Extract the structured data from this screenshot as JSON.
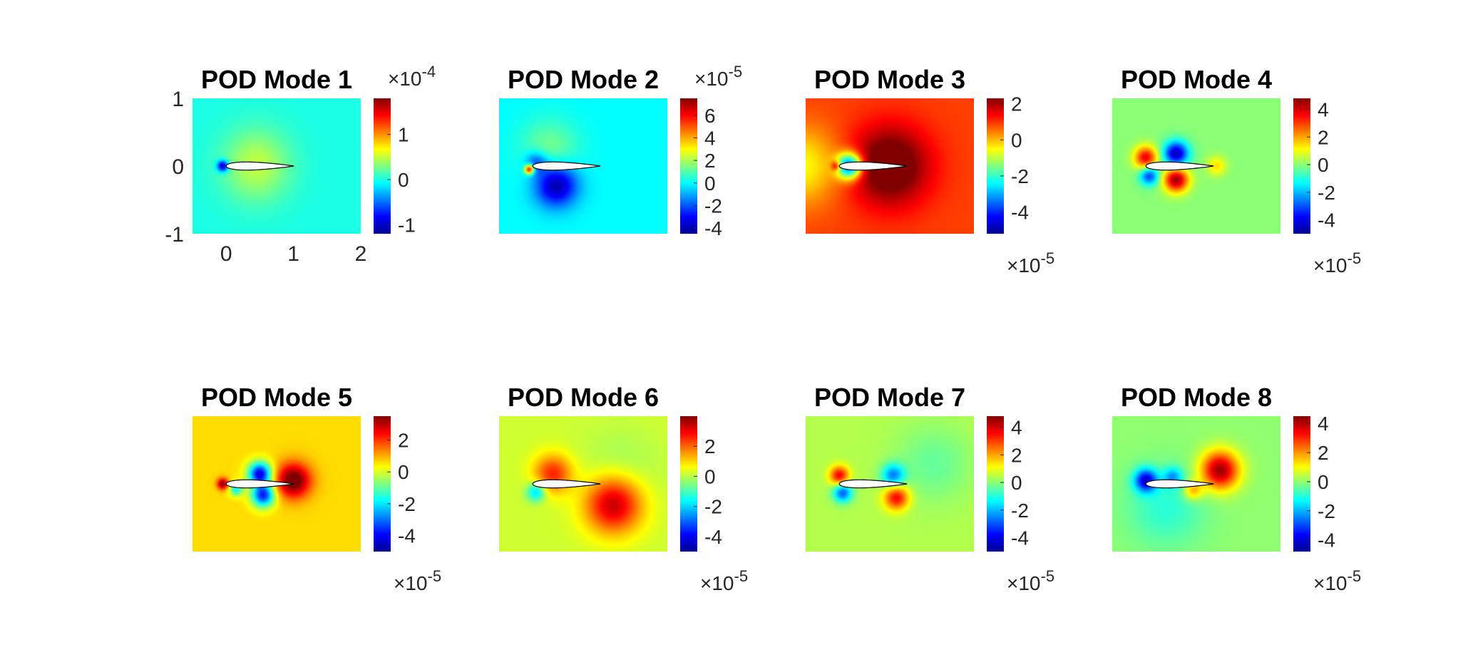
{
  "figure": {
    "colormap": [
      "#00008f",
      "#0000ff",
      "#0080ff",
      "#00ffff",
      "#80ff80",
      "#ffff00",
      "#ff8000",
      "#ff0000",
      "#800000"
    ],
    "airfoil_fill": "#ffffff",
    "airfoil_stroke": "#000000",
    "shared_axes": {
      "x_ticks": [
        "0",
        "1",
        "2"
      ],
      "y_ticks": [
        "1",
        "0",
        "-1"
      ]
    }
  },
  "chart_data": [
    {
      "type": "heatmap",
      "title": "POD Mode 1",
      "shows_axis_ticks": true,
      "xlim": [
        -0.5,
        2
      ],
      "ylim": [
        -1,
        1
      ],
      "colorbar": {
        "clim": [
          -1.2,
          1.8
        ],
        "ticks": [
          1,
          0,
          -1
        ],
        "tick_labels": [
          "1",
          "0",
          "-1"
        ],
        "exponent_label": "×10",
        "exponent": "-4",
        "exponent_position": "top"
      },
      "field_level": 0.0,
      "features": [
        {
          "x": -0.05,
          "y": 0.0,
          "value": -1.2,
          "spread": 0.06
        },
        {
          "x": 0.45,
          "y": 0.12,
          "value": 0.3,
          "spread": 0.35
        },
        {
          "x": 0.45,
          "y": -0.12,
          "value": 0.25,
          "spread": 0.35
        }
      ]
    },
    {
      "type": "heatmap",
      "title": "POD Mode 2",
      "shows_axis_ticks": false,
      "xlim": [
        -0.5,
        2
      ],
      "ylim": [
        -1,
        1
      ],
      "colorbar": {
        "clim": [
          -4.5,
          7.5
        ],
        "ticks": [
          6,
          4,
          2,
          0,
          -2,
          -4
        ],
        "tick_labels": [
          "6",
          "4",
          "2",
          "0",
          "-2",
          "-4"
        ],
        "exponent_label": "×10",
        "exponent": "-5",
        "exponent_position": "top"
      },
      "field_level": 0.0,
      "features": [
        {
          "x": 0.35,
          "y": -0.28,
          "value": -4.5,
          "spread": 0.22
        },
        {
          "x": 0.05,
          "y": 0.05,
          "value": -2.5,
          "spread": 0.12
        },
        {
          "x": -0.05,
          "y": -0.05,
          "value": 7.0,
          "spread": 0.05
        },
        {
          "x": 0.25,
          "y": 0.25,
          "value": 1.5,
          "spread": 0.3
        }
      ]
    },
    {
      "type": "heatmap",
      "title": "POD Mode 3",
      "shows_axis_ticks": false,
      "xlim": [
        -0.5,
        2
      ],
      "ylim": [
        -1,
        1
      ],
      "colorbar": {
        "clim": [
          -5.2,
          2.3
        ],
        "ticks": [
          2,
          0,
          -2,
          -4
        ],
        "tick_labels": [
          "2",
          "0",
          "-2",
          "-4"
        ],
        "exponent_label": "×10",
        "exponent": "-5",
        "exponent_position": "bottom"
      },
      "field_level": 0.9,
      "features": [
        {
          "x": 0.15,
          "y": 0.0,
          "value": -5.0,
          "spread": 0.13
        },
        {
          "x": 0.75,
          "y": 0.0,
          "value": 2.2,
          "spread": 0.4
        },
        {
          "x": -0.55,
          "y": 0.0,
          "value": -1.5,
          "spread": 0.4
        },
        {
          "x": -0.05,
          "y": 0.0,
          "value": 2.0,
          "spread": 0.05
        }
      ]
    },
    {
      "type": "heatmap",
      "title": "POD Mode 4",
      "shows_axis_ticks": false,
      "xlim": [
        -0.5,
        2
      ],
      "ylim": [
        -1,
        1
      ],
      "colorbar": {
        "clim": [
          -5.0,
          4.8
        ],
        "ticks": [
          4,
          2,
          0,
          -2,
          -4
        ],
        "tick_labels": [
          "4",
          "2",
          "0",
          "-2",
          "-4"
        ],
        "exponent_label": "×10",
        "exponent": "-5",
        "exponent_position": "bottom"
      },
      "field_level": 0.0,
      "features": [
        {
          "x": 0.0,
          "y": 0.12,
          "value": 4.0,
          "spread": 0.12
        },
        {
          "x": 0.05,
          "y": -0.14,
          "value": -3.5,
          "spread": 0.1
        },
        {
          "x": 0.45,
          "y": 0.18,
          "value": -4.8,
          "spread": 0.13
        },
        {
          "x": 0.45,
          "y": -0.2,
          "value": 4.8,
          "spread": 0.13
        },
        {
          "x": 1.05,
          "y": 0.0,
          "value": 1.5,
          "spread": 0.1
        }
      ]
    },
    {
      "type": "heatmap",
      "title": "POD Mode 5",
      "shows_axis_ticks": false,
      "xlim": [
        -0.5,
        2
      ],
      "ylim": [
        -1,
        1
      ],
      "colorbar": {
        "clim": [
          -5.0,
          3.5
        ],
        "ticks": [
          2,
          0,
          -2,
          -4
        ],
        "tick_labels": [
          "2",
          "0",
          "-2",
          "-4"
        ],
        "exponent_label": "×10",
        "exponent": "-5",
        "exponent_position": "bottom"
      },
      "field_level": 0.6,
      "features": [
        {
          "x": 0.5,
          "y": 0.15,
          "value": -5.0,
          "spread": 0.12
        },
        {
          "x": 0.55,
          "y": -0.17,
          "value": -4.5,
          "spread": 0.12
        },
        {
          "x": 1.0,
          "y": 0.05,
          "value": 3.5,
          "spread": 0.18
        },
        {
          "x": -0.05,
          "y": 0.0,
          "value": 3.0,
          "spread": 0.06
        },
        {
          "x": 0.15,
          "y": -0.08,
          "value": -2.5,
          "spread": 0.07
        }
      ]
    },
    {
      "type": "heatmap",
      "title": "POD Mode 6",
      "shows_axis_ticks": false,
      "xlim": [
        -0.5,
        2
      ],
      "ylim": [
        -1,
        1
      ],
      "colorbar": {
        "clim": [
          -5.0,
          4.0
        ],
        "ticks": [
          2,
          0,
          -2,
          -4
        ],
        "tick_labels": [
          "2",
          "0",
          "-2",
          "-4"
        ],
        "exponent_label": "×10",
        "exponent": "-5",
        "exponent_position": "bottom"
      },
      "field_level": 0.2,
      "features": [
        {
          "x": 0.3,
          "y": 0.15,
          "value": 2.5,
          "spread": 0.2
        },
        {
          "x": 1.2,
          "y": -0.3,
          "value": 3.5,
          "spread": 0.3
        },
        {
          "x": 0.05,
          "y": -0.12,
          "value": -2.5,
          "spread": 0.1
        },
        {
          "x": 1.3,
          "y": 0.2,
          "value": -0.5,
          "spread": 0.4
        }
      ]
    },
    {
      "type": "heatmap",
      "title": "POD Mode 7",
      "shows_axis_ticks": false,
      "xlim": [
        -0.5,
        2
      ],
      "ylim": [
        -1,
        1
      ],
      "colorbar": {
        "clim": [
          -5.0,
          4.8
        ],
        "ticks": [
          4,
          2,
          0,
          -2,
          -4
        ],
        "tick_labels": [
          "4",
          "2",
          "0",
          "-2",
          "-4"
        ],
        "exponent_label": "×10",
        "exponent": "-5",
        "exponent_position": "bottom"
      },
      "field_level": 0.4,
      "features": [
        {
          "x": 0.0,
          "y": 0.12,
          "value": 3.5,
          "spread": 0.1
        },
        {
          "x": 0.05,
          "y": -0.13,
          "value": -3.5,
          "spread": 0.1
        },
        {
          "x": 0.8,
          "y": 0.12,
          "value": -3.0,
          "spread": 0.12
        },
        {
          "x": 0.85,
          "y": -0.2,
          "value": 3.5,
          "spread": 0.13
        },
        {
          "x": 1.4,
          "y": 0.3,
          "value": -0.8,
          "spread": 0.4
        }
      ]
    },
    {
      "type": "heatmap",
      "title": "POD Mode 8",
      "shows_axis_ticks": false,
      "xlim": [
        -0.5,
        2
      ],
      "ylim": [
        -1,
        1
      ],
      "colorbar": {
        "clim": [
          -4.8,
          4.5
        ],
        "ticks": [
          4,
          2,
          0,
          -2,
          -4
        ],
        "tick_labels": [
          "4",
          "2",
          "0",
          "-2",
          "-4"
        ],
        "exponent_label": "×10",
        "exponent": "-5",
        "exponent_position": "bottom"
      },
      "field_level": 0.0,
      "features": [
        {
          "x": 1.1,
          "y": 0.2,
          "value": 4.5,
          "spread": 0.2
        },
        {
          "x": 0.0,
          "y": 0.05,
          "value": -4.0,
          "spread": 0.12
        },
        {
          "x": 0.4,
          "y": 0.1,
          "value": -2.0,
          "spread": 0.1
        },
        {
          "x": 0.7,
          "y": -0.1,
          "value": 2.0,
          "spread": 0.1
        },
        {
          "x": 0.3,
          "y": -0.35,
          "value": -1.0,
          "spread": 0.4
        }
      ]
    }
  ]
}
